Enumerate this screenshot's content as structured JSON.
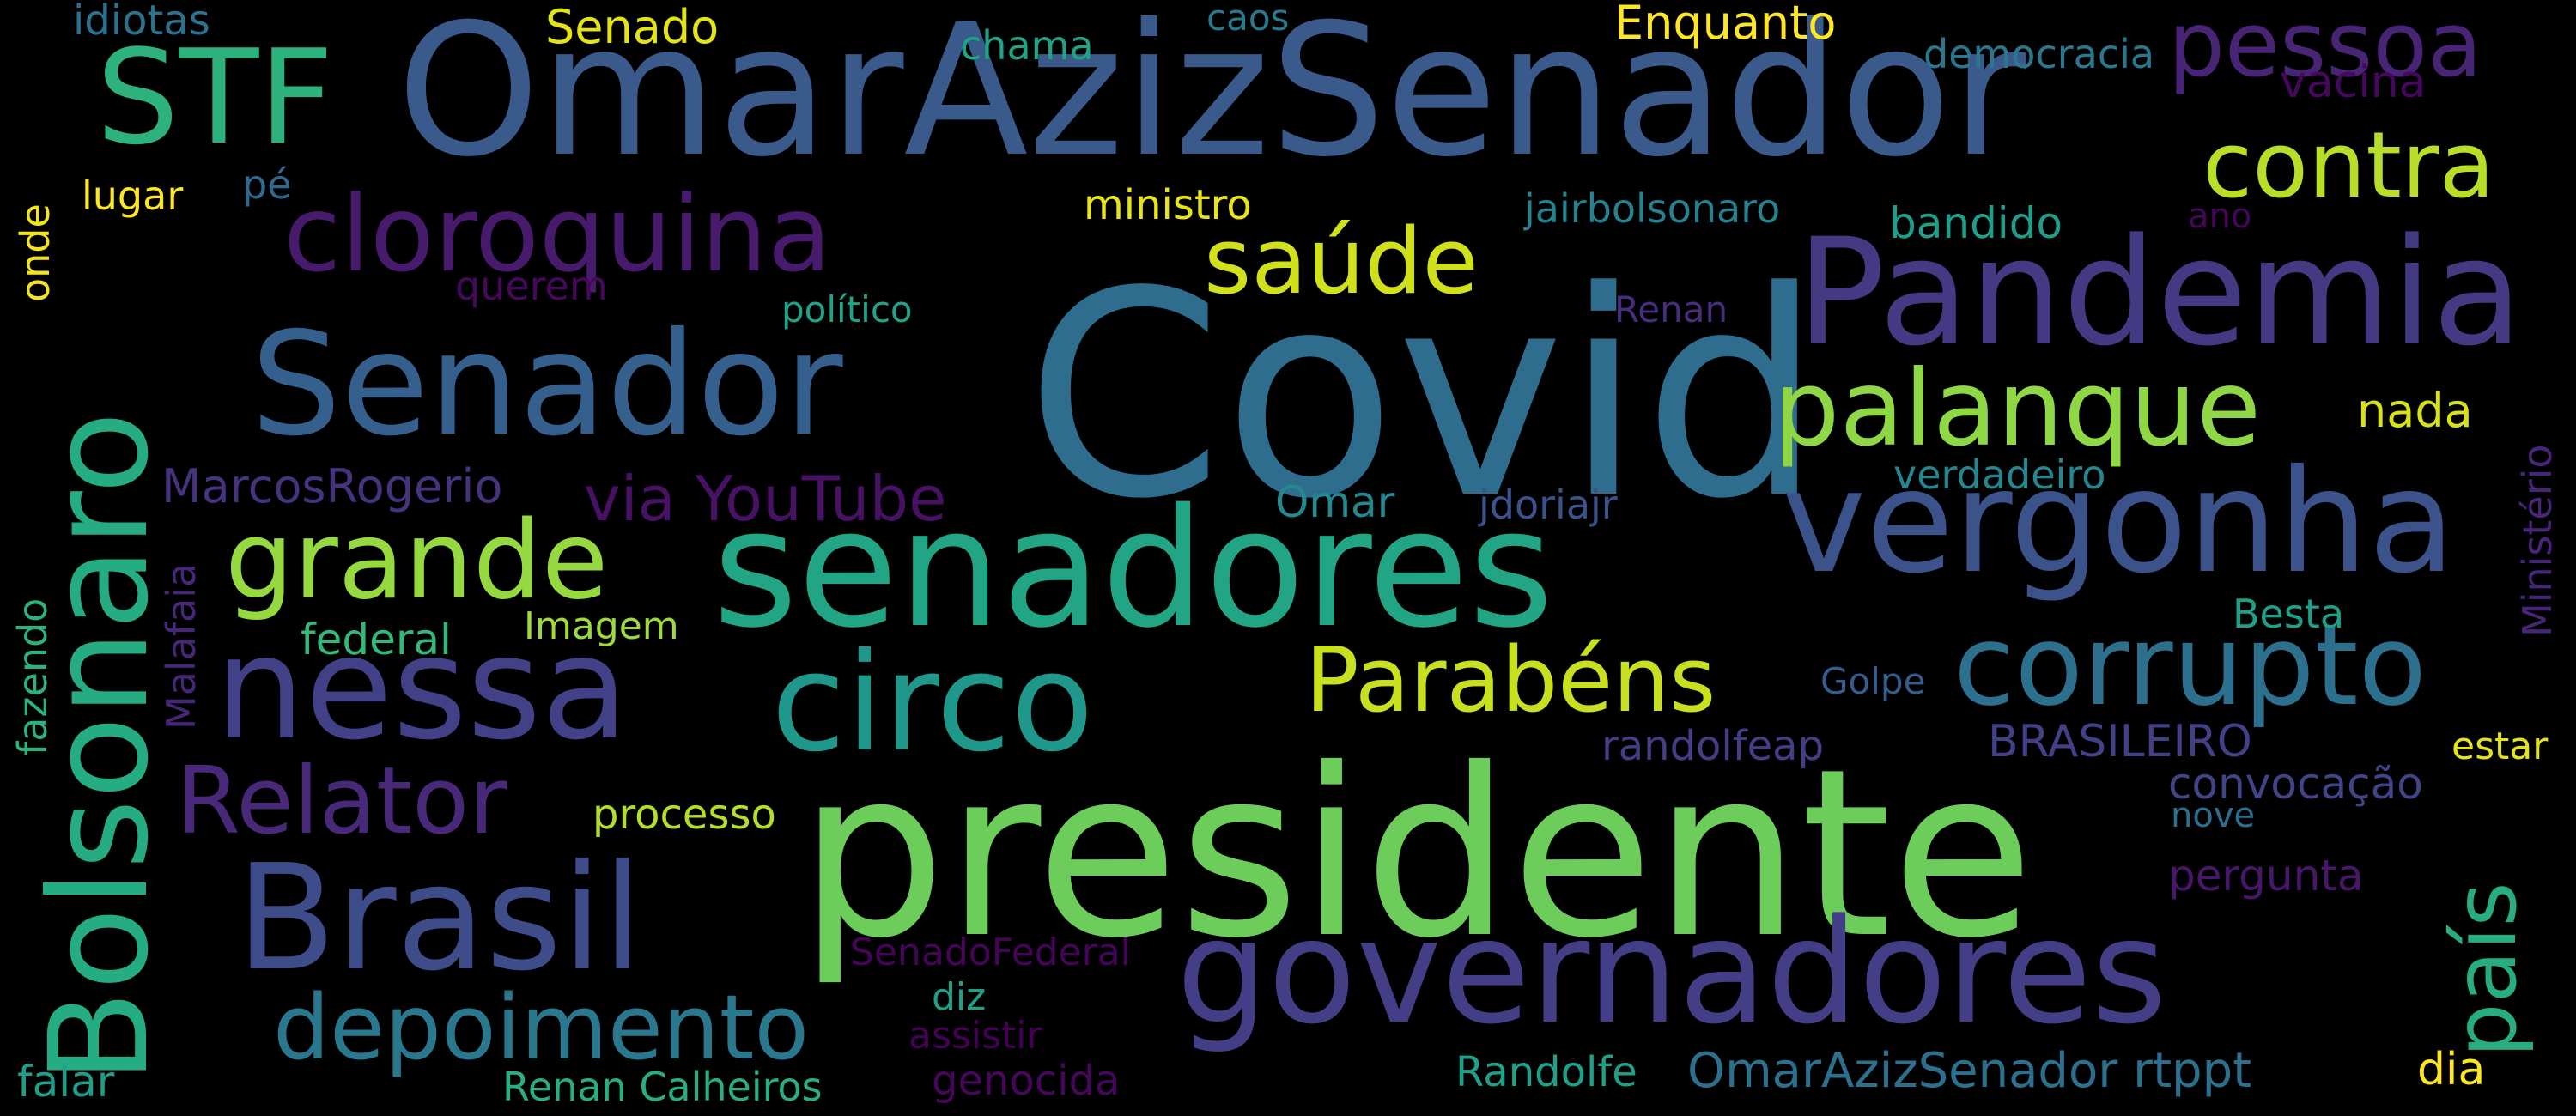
{
  "colors": {
    "background": "#000000",
    "palette": [
      "#440154",
      "#482878",
      "#3e4989",
      "#31688e",
      "#26828e",
      "#1f9e89",
      "#35b779",
      "#6ece58",
      "#b5de2b",
      "#fde725"
    ]
  },
  "words": [
    {
      "text": "Covid",
      "color": "#2e6d8e"
    },
    {
      "text": "presidente",
      "color": "#6ccd5a"
    },
    {
      "text": "OmarAzizSenador",
      "color": "#3a5a8c"
    },
    {
      "text": "senadores",
      "color": "#21a585"
    },
    {
      "text": "Pandemia",
      "color": "#443a83"
    },
    {
      "text": "governadores",
      "color": "#433e85"
    },
    {
      "text": "Bolsonaro",
      "color": "#25ac82"
    },
    {
      "text": "vergonha",
      "color": "#3b528b"
    },
    {
      "text": "Senador",
      "color": "#35608d"
    },
    {
      "text": "nessa",
      "color": "#424086"
    },
    {
      "text": "circo",
      "color": "#1f988b"
    },
    {
      "text": "Brasil",
      "color": "#3e4c8a"
    },
    {
      "text": "corrupto",
      "color": "#2d708e"
    },
    {
      "text": "STF",
      "color": "#2db27d"
    },
    {
      "text": "cloroquina",
      "color": "#481a6c"
    },
    {
      "text": "pessoa",
      "color": "#482475"
    },
    {
      "text": "palanque",
      "color": "#8fd744"
    },
    {
      "text": "grande",
      "color": "#95d840"
    },
    {
      "text": "contra",
      "color": "#b8de29"
    },
    {
      "text": "saúde",
      "color": "#d0e11c"
    },
    {
      "text": "Parabéns",
      "color": "#c8e020"
    },
    {
      "text": "depoimento",
      "color": "#2a788e"
    },
    {
      "text": "Relator",
      "color": "#482979"
    },
    {
      "text": "país",
      "color": "#27ad81"
    },
    {
      "text": "via YouTube",
      "color": "#471164"
    },
    {
      "text": "MarcosRogerio",
      "color": "#46337e"
    },
    {
      "text": "Enquanto",
      "color": "#fde725"
    },
    {
      "text": "Senado",
      "color": "#e2e418"
    },
    {
      "text": "idiotas",
      "color": "#2c728e"
    },
    {
      "text": "chama",
      "color": "#20a486"
    },
    {
      "text": "caos",
      "color": "#2a788e"
    },
    {
      "text": "democracia",
      "color": "#2a788e"
    },
    {
      "text": "vacina",
      "color": "#46085c"
    },
    {
      "text": "lugar",
      "color": "#fde725"
    },
    {
      "text": "pé",
      "color": "#31688e"
    },
    {
      "text": "ministro",
      "color": "#e7e419"
    },
    {
      "text": "jairbolsonaro",
      "color": "#26828e"
    },
    {
      "text": "bandido",
      "color": "#1f9e89"
    },
    {
      "text": "ano",
      "color": "#450559"
    },
    {
      "text": "onde",
      "color": "#f1e51d"
    },
    {
      "text": "querem",
      "color": "#46085c"
    },
    {
      "text": "político",
      "color": "#20a386"
    },
    {
      "text": "Renan",
      "color": "#472d7b"
    },
    {
      "text": "nada",
      "color": "#d8e219"
    },
    {
      "text": "Ministério",
      "color": "#482677"
    },
    {
      "text": "Omar",
      "color": "#23898e"
    },
    {
      "text": "jdoriajr",
      "color": "#3b528b"
    },
    {
      "text": "verdadeiro",
      "color": "#24868e"
    },
    {
      "text": "Malafaia",
      "color": "#482677"
    },
    {
      "text": "fazendo",
      "color": "#2db27d"
    },
    {
      "text": "federal",
      "color": "#35b779"
    },
    {
      "text": "Imagem",
      "color": "#9fda3a"
    },
    {
      "text": "Besta",
      "color": "#1fa088"
    },
    {
      "text": "Golpe",
      "color": "#365c8d"
    },
    {
      "text": "randolfeap",
      "color": "#433e85"
    },
    {
      "text": "BRASILEIRO",
      "color": "#424086"
    },
    {
      "text": "estar",
      "color": "#e5e419"
    },
    {
      "text": "convocação",
      "color": "#414487"
    },
    {
      "text": "processo",
      "color": "#b5de2b"
    },
    {
      "text": "nove",
      "color": "#2e6e8e"
    },
    {
      "text": "pergunta",
      "color": "#481769"
    },
    {
      "text": "SenadoFederal",
      "color": "#450457"
    },
    {
      "text": "diz",
      "color": "#1fa187"
    },
    {
      "text": "assistir",
      "color": "#440154"
    },
    {
      "text": "falar",
      "color": "#1f9e89"
    },
    {
      "text": "Renan Calheiros",
      "color": "#29af7f"
    },
    {
      "text": "genocida",
      "color": "#46075a"
    },
    {
      "text": "Randolfe",
      "color": "#1fa088"
    },
    {
      "text": "OmarAzizSenador rtppt",
      "color": "#2d708e"
    },
    {
      "text": "dia",
      "color": "#fde725"
    }
  ]
}
